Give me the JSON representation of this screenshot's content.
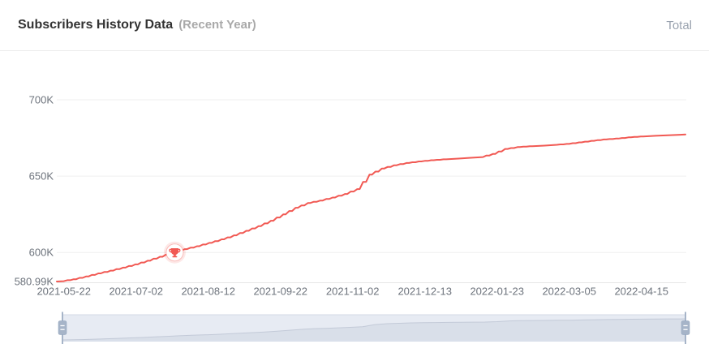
{
  "header": {
    "title": "Subscribers History Data",
    "subtitle": "(Recent Year)",
    "legend_total": "Total"
  },
  "chart_data": {
    "type": "line",
    "title": "Subscribers History Data (Recent Year)",
    "series_name": "Total",
    "unit": "K subscribers",
    "ylim": [
      580.99,
      700
    ],
    "y_gridlines": [
      600,
      650,
      700
    ],
    "y_axis_labels": [
      {
        "label": "700K",
        "value": 700
      },
      {
        "label": "650K",
        "value": 650
      },
      {
        "label": "600K",
        "value": 600
      },
      {
        "label": "580.99K",
        "value": 580.99
      }
    ],
    "x_ticks": [
      "2021-05-22",
      "2021-07-02",
      "2021-08-12",
      "2021-09-22",
      "2021-11-02",
      "2021-12-13",
      "2022-01-23",
      "2022-03-05",
      "2022-04-15"
    ],
    "points": [
      [
        "2021-05-18",
        580.99
      ],
      [
        "2021-05-22",
        581.2
      ],
      [
        "2021-05-29",
        582.5
      ],
      [
        "2021-06-05",
        584.3
      ],
      [
        "2021-06-12",
        586.3
      ],
      [
        "2021-06-19",
        588.1
      ],
      [
        "2021-06-26",
        590.1
      ],
      [
        "2021-07-03",
        592.2
      ],
      [
        "2021-07-10",
        594.6
      ],
      [
        "2021-07-17",
        597.2
      ],
      [
        "2021-07-24",
        600.0
      ],
      [
        "2021-07-31",
        602.2
      ],
      [
        "2021-08-07",
        604.1
      ],
      [
        "2021-08-14",
        606.3
      ],
      [
        "2021-08-21",
        608.6
      ],
      [
        "2021-08-28",
        611.2
      ],
      [
        "2021-09-04",
        614.2
      ],
      [
        "2021-09-11",
        617.3
      ],
      [
        "2021-09-18",
        620.8
      ],
      [
        "2021-09-25",
        625.0
      ],
      [
        "2021-10-02",
        629.3
      ],
      [
        "2021-10-09",
        632.4
      ],
      [
        "2021-10-16",
        634.0
      ],
      [
        "2021-10-23",
        636.0
      ],
      [
        "2021-10-30",
        638.3
      ],
      [
        "2021-11-06",
        641.5
      ],
      [
        "2021-11-13",
        651.0
      ],
      [
        "2021-11-20",
        655.0
      ],
      [
        "2021-11-27",
        657.1
      ],
      [
        "2021-12-04",
        658.6
      ],
      [
        "2021-12-11",
        659.6
      ],
      [
        "2021-12-18",
        660.4
      ],
      [
        "2021-12-25",
        661.0
      ],
      [
        "2022-01-01",
        661.5
      ],
      [
        "2022-01-08",
        662.0
      ],
      [
        "2022-01-15",
        662.5
      ],
      [
        "2022-01-22",
        664.5
      ],
      [
        "2022-01-29",
        667.8
      ],
      [
        "2022-02-05",
        669.0
      ],
      [
        "2022-02-12",
        669.6
      ],
      [
        "2022-02-19",
        670.0
      ],
      [
        "2022-02-26",
        670.5
      ],
      [
        "2022-03-05",
        671.1
      ],
      [
        "2022-03-12",
        672.1
      ],
      [
        "2022-03-19",
        673.1
      ],
      [
        "2022-03-26",
        674.0
      ],
      [
        "2022-04-02",
        674.6
      ],
      [
        "2022-04-09",
        675.4
      ],
      [
        "2022-04-16",
        676.0
      ],
      [
        "2022-04-23",
        676.4
      ],
      [
        "2022-04-30",
        676.8
      ],
      [
        "2022-05-07",
        677.1
      ],
      [
        "2022-05-10",
        677.3
      ]
    ],
    "marker": {
      "date": "2021-07-24",
      "value": 600.0,
      "icon": "trophy-icon"
    },
    "grid": true,
    "legend_position": "top-right",
    "datazoom_slider": {
      "enabled": true,
      "full_range_selected": true
    },
    "colors": {
      "line": "#f15953",
      "grid": "#efefef",
      "axis": "#e6e6e6",
      "tick_text": "#6e747d",
      "marker_glow": "rgba(241,89,83,0.14)",
      "marker_ring": "rgba(241,89,83,0.35)",
      "slider_track": "#e7ebf3",
      "slider_border": "#d3dae6",
      "slider_shadow_fill": "#d9dfe9",
      "slider_shadow_line": "#c3cad8",
      "slider_handle": "#a6b4c8",
      "slider_handle_edge": "#8da1bb"
    }
  }
}
